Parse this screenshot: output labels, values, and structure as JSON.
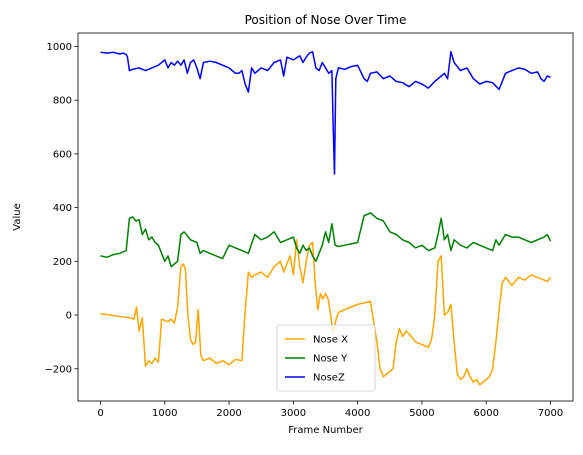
{
  "chart_data": {
    "type": "line",
    "title": "Position of Nose Over Time",
    "xlabel": "Frame Number",
    "ylabel": "Value",
    "xlim": [
      -350,
      7350
    ],
    "ylim": [
      -320,
      1050
    ],
    "xticks": [
      0,
      1000,
      2000,
      3000,
      4000,
      5000,
      6000,
      7000
    ],
    "yticks": [
      -200,
      0,
      200,
      400,
      600,
      800,
      1000
    ],
    "legend_position": "lower-center",
    "series": [
      {
        "name": "Nose X",
        "color": "#ffa500",
        "x": [
          0,
          150,
          300,
          450,
          520,
          560,
          600,
          650,
          700,
          750,
          800,
          850,
          900,
          950,
          1000,
          1050,
          1100,
          1150,
          1200,
          1250,
          1290,
          1320,
          1360,
          1400,
          1440,
          1480,
          1520,
          1560,
          1600,
          1700,
          1800,
          1900,
          2000,
          2100,
          2200,
          2250,
          2300,
          2350,
          2400,
          2500,
          2600,
          2700,
          2800,
          2850,
          2900,
          2950,
          3000,
          3050,
          3100,
          3150,
          3200,
          3250,
          3300,
          3340,
          3380,
          3420,
          3460,
          3500,
          3540,
          3580,
          3620,
          3660,
          3700,
          3800,
          3900,
          4000,
          4100,
          4200,
          4300,
          4350,
          4400,
          4450,
          4500,
          4550,
          4600,
          4650,
          4700,
          4750,
          4800,
          4900,
          5000,
          5100,
          5150,
          5200,
          5250,
          5300,
          5350,
          5400,
          5450,
          5500,
          5550,
          5600,
          5650,
          5700,
          5750,
          5800,
          5850,
          5900,
          5950,
          6000,
          6050,
          6100,
          6150,
          6200,
          6250,
          6300,
          6400,
          6500,
          6600,
          6700,
          6800,
          6900,
          6950,
          7000
        ],
        "values": [
          5,
          0,
          -5,
          -10,
          -15,
          30,
          -60,
          -10,
          -190,
          -170,
          -180,
          -160,
          -175,
          -15,
          -20,
          -25,
          -15,
          -30,
          30,
          180,
          190,
          170,
          0,
          -90,
          -110,
          -100,
          20,
          -150,
          -170,
          -160,
          -180,
          -170,
          -185,
          -165,
          -170,
          10,
          160,
          140,
          150,
          160,
          140,
          180,
          200,
          160,
          190,
          220,
          150,
          280,
          180,
          120,
          200,
          260,
          270,
          120,
          20,
          80,
          60,
          80,
          60,
          0,
          -70,
          -20,
          10,
          20,
          30,
          40,
          45,
          50,
          -100,
          -200,
          -230,
          -220,
          -210,
          -200,
          -100,
          -50,
          -80,
          -60,
          -70,
          -100,
          -110,
          -120,
          -90,
          0,
          200,
          220,
          0,
          10,
          40,
          -100,
          -220,
          -240,
          -230,
          -200,
          -230,
          -250,
          -240,
          -260,
          -250,
          -240,
          -230,
          -200,
          -100,
          20,
          120,
          140,
          110,
          140,
          130,
          150,
          140,
          130,
          125,
          140
        ]
      },
      {
        "name": "Nose Y",
        "color": "#008000",
        "x": [
          0,
          100,
          200,
          300,
          400,
          450,
          500,
          550,
          600,
          650,
          700,
          750,
          800,
          850,
          900,
          950,
          1000,
          1050,
          1100,
          1150,
          1200,
          1250,
          1300,
          1400,
          1500,
          1550,
          1600,
          1700,
          1800,
          1900,
          2000,
          2100,
          2200,
          2300,
          2400,
          2500,
          2600,
          2700,
          2800,
          2900,
          3000,
          3050,
          3100,
          3150,
          3200,
          3250,
          3300,
          3350,
          3400,
          3450,
          3500,
          3550,
          3600,
          3650,
          3700,
          3800,
          3900,
          4000,
          4100,
          4200,
          4300,
          4400,
          4500,
          4600,
          4700,
          4800,
          4900,
          5000,
          5100,
          5200,
          5250,
          5300,
          5350,
          5400,
          5450,
          5500,
          5600,
          5700,
          5800,
          5900,
          6000,
          6100,
          6150,
          6200,
          6300,
          6400,
          6500,
          6600,
          6700,
          6800,
          6900,
          6950,
          7000
        ],
        "values": [
          220,
          215,
          225,
          230,
          240,
          360,
          365,
          350,
          355,
          300,
          320,
          280,
          290,
          270,
          260,
          230,
          200,
          220,
          180,
          190,
          200,
          300,
          310,
          280,
          270,
          230,
          240,
          230,
          220,
          210,
          260,
          250,
          240,
          230,
          300,
          280,
          290,
          310,
          270,
          280,
          290,
          250,
          230,
          260,
          240,
          250,
          220,
          200,
          230,
          260,
          310,
          270,
          340,
          260,
          255,
          260,
          265,
          270,
          370,
          380,
          360,
          350,
          310,
          300,
          280,
          270,
          250,
          260,
          240,
          250,
          300,
          360,
          280,
          300,
          240,
          280,
          260,
          250,
          270,
          260,
          250,
          240,
          280,
          260,
          300,
          290,
          290,
          280,
          270,
          280,
          290,
          300,
          275
        ]
      },
      {
        "name": "NoseZ",
        "color": "#0000ff",
        "x": [
          0,
          100,
          200,
          300,
          350,
          400,
          420,
          450,
          500,
          600,
          700,
          800,
          900,
          1000,
          1050,
          1100,
          1150,
          1200,
          1250,
          1300,
          1350,
          1400,
          1450,
          1500,
          1550,
          1600,
          1700,
          1800,
          1900,
          2000,
          2100,
          2150,
          2200,
          2250,
          2300,
          2350,
          2400,
          2500,
          2600,
          2700,
          2800,
          2850,
          2900,
          3000,
          3100,
          3150,
          3200,
          3250,
          3300,
          3350,
          3400,
          3450,
          3500,
          3550,
          3600,
          3620,
          3640,
          3660,
          3700,
          3800,
          3900,
          4000,
          4100,
          4150,
          4200,
          4300,
          4400,
          4500,
          4600,
          4700,
          4800,
          4900,
          5000,
          5100,
          5200,
          5300,
          5350,
          5400,
          5450,
          5500,
          5600,
          5700,
          5800,
          5900,
          6000,
          6100,
          6200,
          6300,
          6400,
          6500,
          6600,
          6700,
          6800,
          6850,
          6900,
          6950,
          7000
        ],
        "values": [
          978,
          975,
          978,
          972,
          975,
          970,
          960,
          910,
          915,
          920,
          910,
          920,
          930,
          950,
          920,
          940,
          930,
          945,
          930,
          950,
          900,
          940,
          950,
          920,
          880,
          940,
          945,
          940,
          930,
          920,
          900,
          900,
          910,
          860,
          830,
          920,
          900,
          920,
          910,
          940,
          950,
          890,
          960,
          950,
          965,
          940,
          960,
          975,
          980,
          920,
          910,
          940,
          920,
          900,
          910,
          700,
          525,
          880,
          920,
          915,
          925,
          930,
          880,
          870,
          900,
          905,
          880,
          890,
          870,
          865,
          850,
          870,
          860,
          845,
          870,
          890,
          900,
          880,
          980,
          940,
          910,
          920,
          880,
          860,
          870,
          865,
          840,
          900,
          910,
          920,
          915,
          900,
          905,
          880,
          870,
          890,
          885
        ]
      }
    ]
  }
}
